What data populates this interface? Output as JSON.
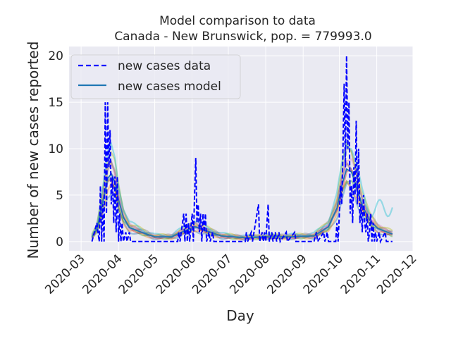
{
  "chart_data": {
    "type": "line",
    "title": "Model comparison to data",
    "subtitle": "Canada - New Brunswick, pop. = 779993.0",
    "xlabel": "Day",
    "ylabel": "Number of new cases reported",
    "xlim": [
      "2020-02-20",
      "2020-12-01"
    ],
    "ylim": [
      -1,
      21
    ],
    "x_ticks": [
      "2020-03",
      "2020-04",
      "2020-05",
      "2020-06",
      "2020-07",
      "2020-08",
      "2020-09",
      "2020-10",
      "2020-11",
      "2020-12"
    ],
    "x_tick_dates": [
      "2020-03-01",
      "2020-04-01",
      "2020-05-01",
      "2020-06-01",
      "2020-07-01",
      "2020-08-01",
      "2020-09-01",
      "2020-10-01",
      "2020-11-01",
      "2020-12-01"
    ],
    "y_ticks": [
      0,
      5,
      10,
      15,
      20
    ],
    "grid": true,
    "background": "#eaeaf2",
    "legend_position": "top-left",
    "series": [
      {
        "name": "new cases data",
        "style": "dashed",
        "color": "#0000ff",
        "points": [
          [
            "2020-03-10",
            0
          ],
          [
            "2020-03-14",
            2
          ],
          [
            "2020-03-16",
            0
          ],
          [
            "2020-03-17",
            6
          ],
          [
            "2020-03-18",
            0
          ],
          [
            "2020-03-19",
            4
          ],
          [
            "2020-03-20",
            0
          ],
          [
            "2020-03-21",
            15
          ],
          [
            "2020-03-22",
            3
          ],
          [
            "2020-03-23",
            15
          ],
          [
            "2020-03-24",
            8
          ],
          [
            "2020-03-25",
            12
          ],
          [
            "2020-03-26",
            4
          ],
          [
            "2020-03-27",
            7
          ],
          [
            "2020-03-28",
            2
          ],
          [
            "2020-03-29",
            7
          ],
          [
            "2020-03-30",
            1
          ],
          [
            "2020-03-31",
            7
          ],
          [
            "2020-04-01",
            0
          ],
          [
            "2020-04-02",
            3
          ],
          [
            "2020-04-03",
            0
          ],
          [
            "2020-04-04",
            2
          ],
          [
            "2020-04-05",
            0
          ],
          [
            "2020-04-07",
            1
          ],
          [
            "2020-04-08",
            0
          ],
          [
            "2020-04-10",
            1
          ],
          [
            "2020-04-11",
            0
          ],
          [
            "2020-05-20",
            0
          ],
          [
            "2020-05-21",
            1
          ],
          [
            "2020-05-22",
            0
          ],
          [
            "2020-05-25",
            3
          ],
          [
            "2020-05-26",
            0
          ],
          [
            "2020-05-27",
            3
          ],
          [
            "2020-05-28",
            0
          ],
          [
            "2020-05-29",
            2
          ],
          [
            "2020-05-30",
            0
          ],
          [
            "2020-06-01",
            3
          ],
          [
            "2020-06-02",
            0
          ],
          [
            "2020-06-03",
            5
          ],
          [
            "2020-06-04",
            9
          ],
          [
            "2020-06-05",
            2
          ],
          [
            "2020-06-06",
            4
          ],
          [
            "2020-06-07",
            1
          ],
          [
            "2020-06-08",
            3
          ],
          [
            "2020-06-09",
            0
          ],
          [
            "2020-06-10",
            3
          ],
          [
            "2020-06-11",
            1
          ],
          [
            "2020-06-12",
            3
          ],
          [
            "2020-06-13",
            0
          ],
          [
            "2020-06-15",
            1
          ],
          [
            "2020-06-16",
            0
          ],
          [
            "2020-06-18",
            1
          ],
          [
            "2020-06-19",
            0
          ],
          [
            "2020-07-15",
            0
          ],
          [
            "2020-07-16",
            1
          ],
          [
            "2020-07-17",
            0
          ],
          [
            "2020-07-20",
            1
          ],
          [
            "2020-07-21",
            0
          ],
          [
            "2020-07-26",
            4
          ],
          [
            "2020-07-27",
            0
          ],
          [
            "2020-07-29",
            1
          ],
          [
            "2020-07-30",
            0
          ],
          [
            "2020-07-31",
            1
          ],
          [
            "2020-08-01",
            0
          ],
          [
            "2020-08-03",
            4
          ],
          [
            "2020-08-04",
            0
          ],
          [
            "2020-08-06",
            1
          ],
          [
            "2020-08-07",
            0
          ],
          [
            "2020-08-09",
            1
          ],
          [
            "2020-08-10",
            0
          ],
          [
            "2020-08-12",
            1
          ],
          [
            "2020-08-13",
            0
          ],
          [
            "2020-08-18",
            1
          ],
          [
            "2020-08-19",
            0
          ],
          [
            "2020-08-25",
            1
          ],
          [
            "2020-08-26",
            0
          ],
          [
            "2020-09-10",
            0
          ],
          [
            "2020-09-12",
            1
          ],
          [
            "2020-09-13",
            0
          ],
          [
            "2020-09-18",
            1
          ],
          [
            "2020-09-19",
            0
          ],
          [
            "2020-09-21",
            1
          ],
          [
            "2020-09-22",
            0
          ],
          [
            "2020-09-28",
            0
          ],
          [
            "2020-09-29",
            2
          ],
          [
            "2020-09-30",
            0
          ],
          [
            "2020-10-02",
            6
          ],
          [
            "2020-10-03",
            4
          ],
          [
            "2020-10-04",
            10
          ],
          [
            "2020-10-05",
            17
          ],
          [
            "2020-10-06",
            8
          ],
          [
            "2020-10-07",
            20
          ],
          [
            "2020-10-08",
            10
          ],
          [
            "2020-10-09",
            15
          ],
          [
            "2020-10-10",
            3
          ],
          [
            "2020-10-11",
            6
          ],
          [
            "2020-10-12",
            2
          ],
          [
            "2020-10-13",
            8
          ],
          [
            "2020-10-14",
            5
          ],
          [
            "2020-10-15",
            13
          ],
          [
            "2020-10-16",
            4
          ],
          [
            "2020-10-17",
            10
          ],
          [
            "2020-10-18",
            2
          ],
          [
            "2020-10-19",
            4
          ],
          [
            "2020-10-20",
            1
          ],
          [
            "2020-10-21",
            5
          ],
          [
            "2020-10-22",
            2
          ],
          [
            "2020-10-23",
            1
          ],
          [
            "2020-10-24",
            3
          ],
          [
            "2020-10-25",
            0
          ],
          [
            "2020-10-26",
            1
          ],
          [
            "2020-10-27",
            3
          ],
          [
            "2020-10-28",
            0
          ],
          [
            "2020-10-29",
            2
          ],
          [
            "2020-10-30",
            0
          ],
          [
            "2020-10-31",
            1
          ],
          [
            "2020-11-01",
            0
          ],
          [
            "2020-11-03",
            1
          ],
          [
            "2020-11-04",
            0
          ],
          [
            "2020-11-08",
            1
          ],
          [
            "2020-11-09",
            0
          ],
          [
            "2020-11-14",
            0
          ]
        ]
      },
      {
        "name": "new cases model",
        "style": "solid",
        "color": "#1f77b4",
        "points": [
          [
            "2020-03-10",
            0.5
          ],
          [
            "2020-03-14",
            1.3
          ],
          [
            "2020-03-17",
            3.0
          ],
          [
            "2020-03-20",
            5.0
          ],
          [
            "2020-03-23",
            6.8
          ],
          [
            "2020-03-26",
            7.3
          ],
          [
            "2020-03-29",
            6.4
          ],
          [
            "2020-04-01",
            4.5
          ],
          [
            "2020-04-05",
            2.6
          ],
          [
            "2020-04-10",
            1.5
          ],
          [
            "2020-04-20",
            1.0
          ],
          [
            "2020-05-01",
            0.5
          ],
          [
            "2020-05-15",
            0.5
          ],
          [
            "2020-05-25",
            1.1
          ],
          [
            "2020-06-03",
            1.6
          ],
          [
            "2020-06-12",
            1.2
          ],
          [
            "2020-06-25",
            0.6
          ],
          [
            "2020-07-15",
            0.4
          ],
          [
            "2020-08-01",
            0.5
          ],
          [
            "2020-08-20",
            0.5
          ],
          [
            "2020-09-10",
            0.6
          ],
          [
            "2020-09-22",
            1.6
          ],
          [
            "2020-09-29",
            3.6
          ],
          [
            "2020-10-03",
            6.0
          ],
          [
            "2020-10-07",
            7.8
          ],
          [
            "2020-10-11",
            7.5
          ],
          [
            "2020-10-15",
            6.0
          ],
          [
            "2020-10-20",
            3.9
          ],
          [
            "2020-10-26",
            2.3
          ],
          [
            "2020-11-02",
            1.4
          ],
          [
            "2020-11-14",
            0.8
          ]
        ]
      }
    ],
    "ensemble_colors": [
      "#1f77b4",
      "#ff7f0e",
      "#2ca02c",
      "#d62728",
      "#9467bd",
      "#8c564b",
      "#e377c2",
      "#7f7f7f",
      "#bcbd22",
      "#17becf"
    ]
  }
}
